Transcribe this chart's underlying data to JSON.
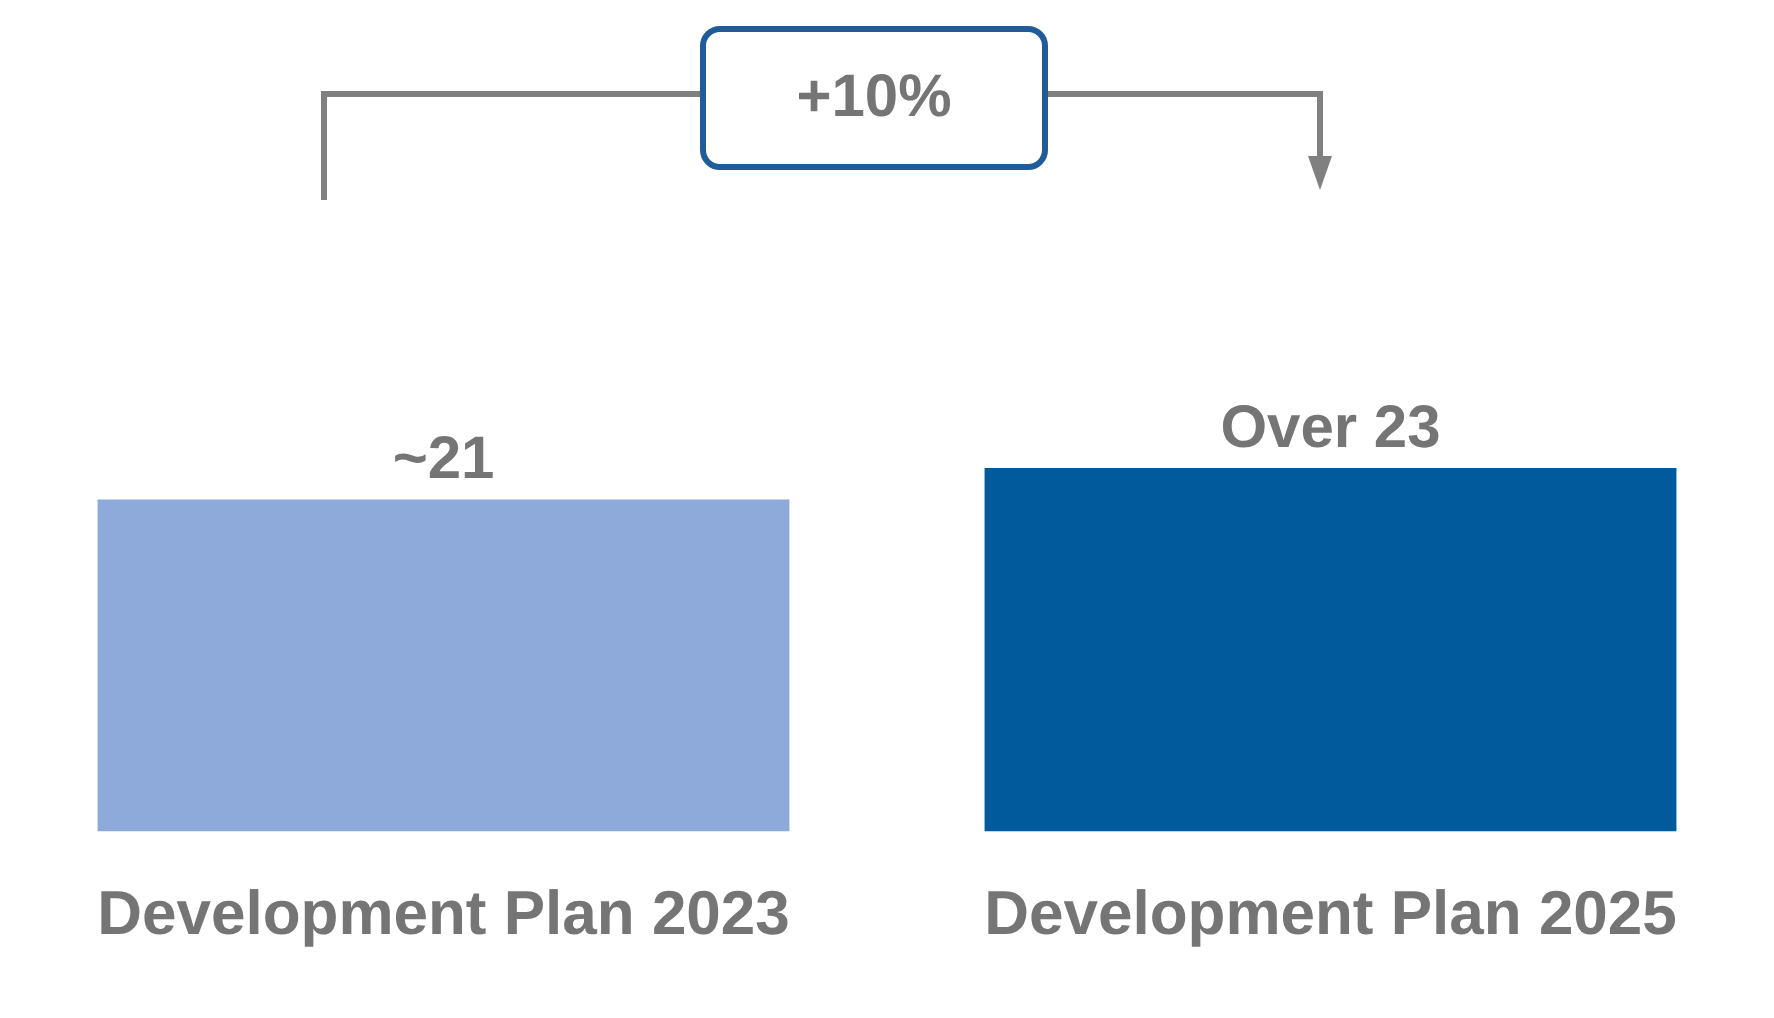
{
  "chart_data": {
    "type": "bar",
    "categories": [
      "Development Plan 2023",
      "Development Plan 2025"
    ],
    "values": [
      21,
      23
    ],
    "colors": [
      "#8eaadb",
      "#005a9c"
    ],
    "value_labels": [
      "~21",
      "Over 23"
    ],
    "ylim": [
      0,
      23
    ],
    "tick_labels": "x",
    "grid": false,
    "legend": false,
    "annotations": [
      "+10%"
    ]
  }
}
